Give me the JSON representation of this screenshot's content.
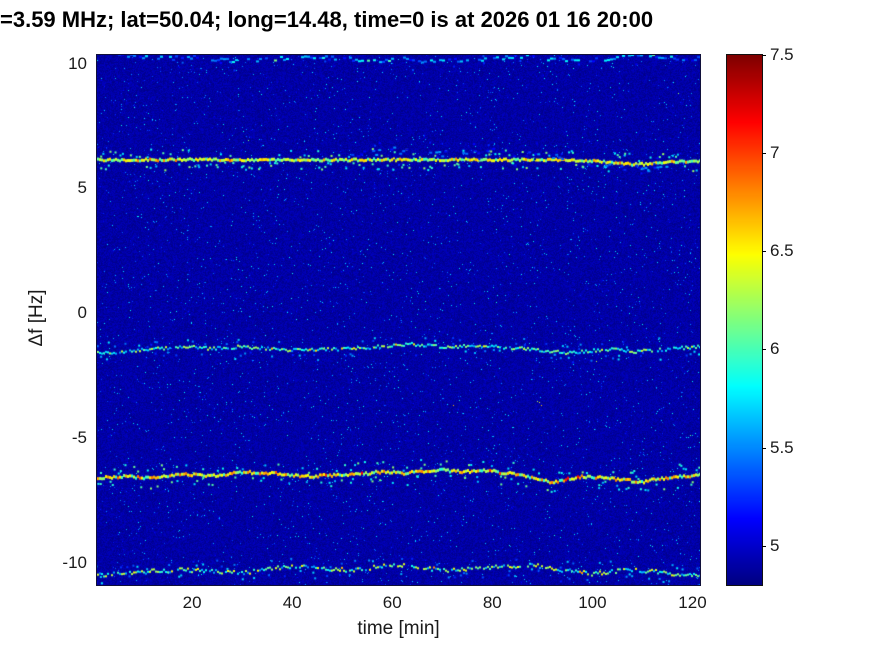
{
  "figure": {
    "bg_color": "#ffffff",
    "text_color": "#1a1a1a",
    "title_color": "#000000"
  },
  "chart_data": {
    "type": "heatmap",
    "title": "=3.59 MHz;  lat=50.04; long=14.48, time=0 is at 2026 01 16 20:00",
    "xlabel": "time [min]",
    "ylabel": "Δf [Hz]",
    "xlim": [
      1,
      121.5
    ],
    "ylim": [
      -10.9,
      10.35
    ],
    "xticks": [
      20,
      40,
      60,
      80,
      100,
      120
    ],
    "yticks": [
      -10,
      -5,
      0,
      5,
      10
    ],
    "grid": false,
    "colormap": "jet",
    "colorbar": {
      "min": 4.8,
      "max": 7.5,
      "ticks": [
        5,
        5.5,
        6,
        6.5,
        7,
        7.5
      ],
      "position": "right"
    },
    "background_level": 4.82,
    "noise": {
      "jitter": 0.16,
      "speckle_chance": 0.012,
      "speckle_min": 0.2,
      "speckle_max": 0.85,
      "rare_chance": 0.001,
      "rare_boost": 0.9
    },
    "traces": [
      {
        "name": "upper-edge-trace",
        "points": [
          [
            1,
            10.45
          ],
          [
            8,
            10.3
          ],
          [
            14,
            10.2
          ],
          [
            20,
            10.28
          ],
          [
            26,
            10.15
          ],
          [
            32,
            10.1
          ],
          [
            38,
            10.22
          ],
          [
            44,
            10.28
          ],
          [
            50,
            10.2
          ],
          [
            56,
            10.12
          ],
          [
            62,
            10.18
          ],
          [
            68,
            10.05
          ],
          [
            74,
            10.15
          ],
          [
            80,
            10.22
          ],
          [
            86,
            10.28
          ],
          [
            92,
            10.18
          ],
          [
            98,
            10.1
          ],
          [
            104,
            10.22
          ],
          [
            110,
            10.38
          ],
          [
            114,
            10.28
          ],
          [
            118,
            10.18
          ],
          [
            121.5,
            10.22
          ]
        ],
        "intensity": [
          5.1,
          5.9
        ],
        "thickness": 2,
        "scatter": 0.25,
        "spread": 0.3,
        "boost_chance": 0.05,
        "boost": 0.4,
        "gap": 0.3,
        "step": 3,
        "jitter": 0.15
      },
      {
        "name": "strong-line-6.1Hz",
        "points": [
          [
            1,
            6.14
          ],
          [
            20,
            6.15
          ],
          [
            40,
            6.13
          ],
          [
            60,
            6.15
          ],
          [
            80,
            6.14
          ],
          [
            90,
            6.15
          ],
          [
            96,
            6.12
          ],
          [
            100,
            6.1
          ],
          [
            104,
            6.02
          ],
          [
            108,
            5.96
          ],
          [
            112,
            5.98
          ],
          [
            116,
            6.06
          ],
          [
            121.5,
            6.1
          ]
        ],
        "intensity": [
          5.95,
          6.65
        ],
        "thickness": 3,
        "scatter": 0.45,
        "spread": 0.28,
        "boost_chance": 0.15,
        "boost": 0.25,
        "gap": 0,
        "step": 2,
        "jitter": 0.08
      },
      {
        "name": "halo-above-6.1Hz",
        "points": [
          [
            50,
            6.35
          ],
          [
            55,
            6.45
          ],
          [
            60,
            6.5
          ],
          [
            65,
            6.45
          ],
          [
            70,
            6.4
          ],
          [
            75,
            6.35
          ],
          [
            80,
            6.45
          ],
          [
            85,
            6.4
          ],
          [
            90,
            6.3
          ],
          [
            95,
            6.3
          ]
        ],
        "intensity": [
          5.0,
          5.6
        ],
        "thickness": 2,
        "scatter": 0.7,
        "spread": 0.4,
        "boost_chance": 0,
        "boost": 0,
        "gap": 0.5,
        "step": 3,
        "jitter": 0.3
      },
      {
        "name": "scatter-below-6Hz",
        "points": [
          [
            99,
            5.95
          ],
          [
            103,
            5.85
          ],
          [
            107,
            5.78
          ],
          [
            111,
            5.8
          ],
          [
            115,
            5.9
          ]
        ],
        "intensity": [
          5.0,
          5.6
        ],
        "thickness": 2,
        "scatter": 0.6,
        "spread": 0.3,
        "boost_chance": 0,
        "boost": 0,
        "gap": 0.45,
        "step": 3,
        "jitter": 0.25
      },
      {
        "name": "wavy-trace-minus1.4Hz",
        "points": [
          [
            1,
            -1.6
          ],
          [
            6,
            -1.55
          ],
          [
            12,
            -1.45
          ],
          [
            18,
            -1.35
          ],
          [
            24,
            -1.42
          ],
          [
            30,
            -1.35
          ],
          [
            36,
            -1.45
          ],
          [
            42,
            -1.5
          ],
          [
            48,
            -1.45
          ],
          [
            54,
            -1.4
          ],
          [
            60,
            -1.3
          ],
          [
            64,
            -1.25
          ],
          [
            68,
            -1.32
          ],
          [
            72,
            -1.38
          ],
          [
            76,
            -1.3
          ],
          [
            80,
            -1.35
          ],
          [
            84,
            -1.4
          ],
          [
            88,
            -1.45
          ],
          [
            92,
            -1.55
          ],
          [
            96,
            -1.6
          ],
          [
            100,
            -1.5
          ],
          [
            104,
            -1.45
          ],
          [
            108,
            -1.55
          ],
          [
            112,
            -1.5
          ],
          [
            116,
            -1.42
          ],
          [
            121.5,
            -1.35
          ]
        ],
        "intensity": [
          5.5,
          6.35
        ],
        "thickness": 2,
        "scatter": 0.3,
        "spread": 0.3,
        "boost_chance": 0.08,
        "boost": 0.3,
        "gap": 0.05,
        "step": 2,
        "jitter": 0.12
      },
      {
        "name": "strong-wavy-trace-minus6.5Hz",
        "points": [
          [
            1,
            -6.6
          ],
          [
            6,
            -6.55
          ],
          [
            12,
            -6.62
          ],
          [
            18,
            -6.45
          ],
          [
            24,
            -6.52
          ],
          [
            30,
            -6.38
          ],
          [
            36,
            -6.42
          ],
          [
            42,
            -6.55
          ],
          [
            48,
            -6.5
          ],
          [
            54,
            -6.45
          ],
          [
            58,
            -6.35
          ],
          [
            62,
            -6.42
          ],
          [
            66,
            -6.35
          ],
          [
            70,
            -6.3
          ],
          [
            74,
            -6.36
          ],
          [
            78,
            -6.3
          ],
          [
            82,
            -6.4
          ],
          [
            86,
            -6.5
          ],
          [
            89,
            -6.68
          ],
          [
            92,
            -6.8
          ],
          [
            95,
            -6.65
          ],
          [
            98,
            -6.55
          ],
          [
            102,
            -6.6
          ],
          [
            106,
            -6.7
          ],
          [
            110,
            -6.76
          ],
          [
            114,
            -6.62
          ],
          [
            118,
            -6.55
          ],
          [
            121.5,
            -6.5
          ]
        ],
        "intensity": [
          5.9,
          6.85
        ],
        "thickness": 3,
        "scatter": 0.4,
        "spread": 0.35,
        "boost_chance": 0.12,
        "boost": 0.35,
        "gap": 0,
        "step": 2,
        "jitter": 0.1
      },
      {
        "name": "bottom-edge-trace",
        "points": [
          [
            1,
            -10.5
          ],
          [
            6,
            -10.45
          ],
          [
            12,
            -10.35
          ],
          [
            18,
            -10.3
          ],
          [
            24,
            -10.36
          ],
          [
            30,
            -10.42
          ],
          [
            36,
            -10.25
          ],
          [
            40,
            -10.15
          ],
          [
            44,
            -10.2
          ],
          [
            48,
            -10.26
          ],
          [
            52,
            -10.32
          ],
          [
            56,
            -10.2
          ],
          [
            60,
            -10.1
          ],
          [
            64,
            -10.16
          ],
          [
            68,
            -10.26
          ],
          [
            72,
            -10.32
          ],
          [
            76,
            -10.26
          ],
          [
            80,
            -10.2
          ],
          [
            84,
            -10.15
          ],
          [
            88,
            -10.1
          ],
          [
            92,
            -10.26
          ],
          [
            96,
            -10.36
          ],
          [
            100,
            -10.46
          ],
          [
            104,
            -10.36
          ],
          [
            108,
            -10.3
          ],
          [
            112,
            -10.36
          ],
          [
            116,
            -10.46
          ],
          [
            121.5,
            -10.5
          ]
        ],
        "intensity": [
          5.5,
          6.5
        ],
        "thickness": 2,
        "scatter": 0.3,
        "spread": 0.3,
        "boost_chance": 0.08,
        "boost": 0.3,
        "gap": 0.12,
        "step": 2,
        "jitter": 0.15
      }
    ]
  }
}
